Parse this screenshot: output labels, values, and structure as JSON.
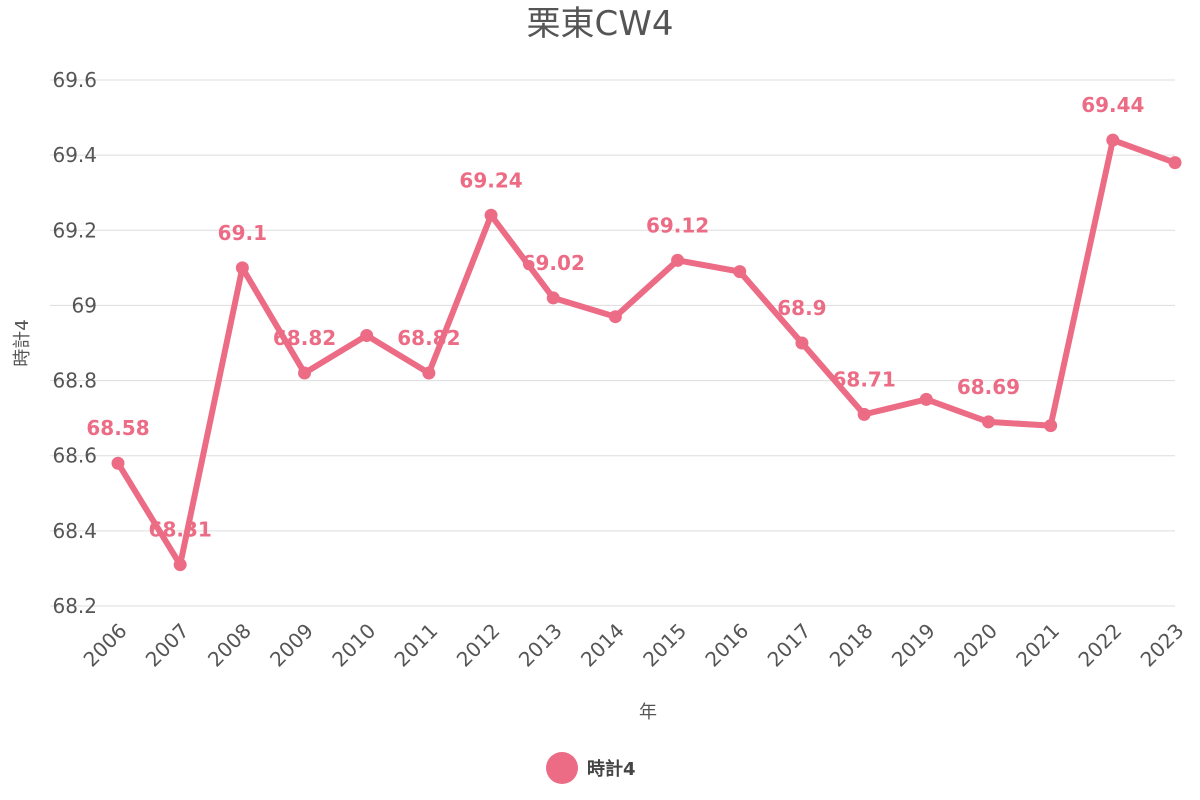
{
  "chart_data": {
    "type": "line",
    "title": "栗東CW4",
    "xlabel": "年",
    "ylabel": "時計4",
    "ylim": [
      68.2,
      69.6
    ],
    "yticks": [
      "68.2",
      "68.4",
      "68.6",
      "68.8",
      "69",
      "69.2",
      "69.4",
      "69.6"
    ],
    "grid": true,
    "legend_position": "bottom-center",
    "categories": [
      "2006",
      "2007",
      "2008",
      "2009",
      "2010",
      "2011",
      "2012",
      "2013",
      "2014",
      "2015",
      "2016",
      "2017",
      "2018",
      "2019",
      "2020",
      "2021",
      "2022",
      "2023"
    ],
    "series": [
      {
        "name": "時計4",
        "color": "#ec6c85",
        "values": [
          68.58,
          68.31,
          69.1,
          68.82,
          68.92,
          68.82,
          69.24,
          69.02,
          68.97,
          69.12,
          69.09,
          68.9,
          68.71,
          68.75,
          68.69,
          68.68,
          69.44,
          69.38
        ],
        "data_labels": [
          "68.58",
          "68.31",
          "69.1",
          "68.82",
          null,
          "68.82",
          "69.24",
          "69.02",
          null,
          "69.12",
          null,
          "68.9",
          "68.71",
          null,
          "68.69",
          null,
          "69.44",
          null
        ]
      }
    ]
  }
}
